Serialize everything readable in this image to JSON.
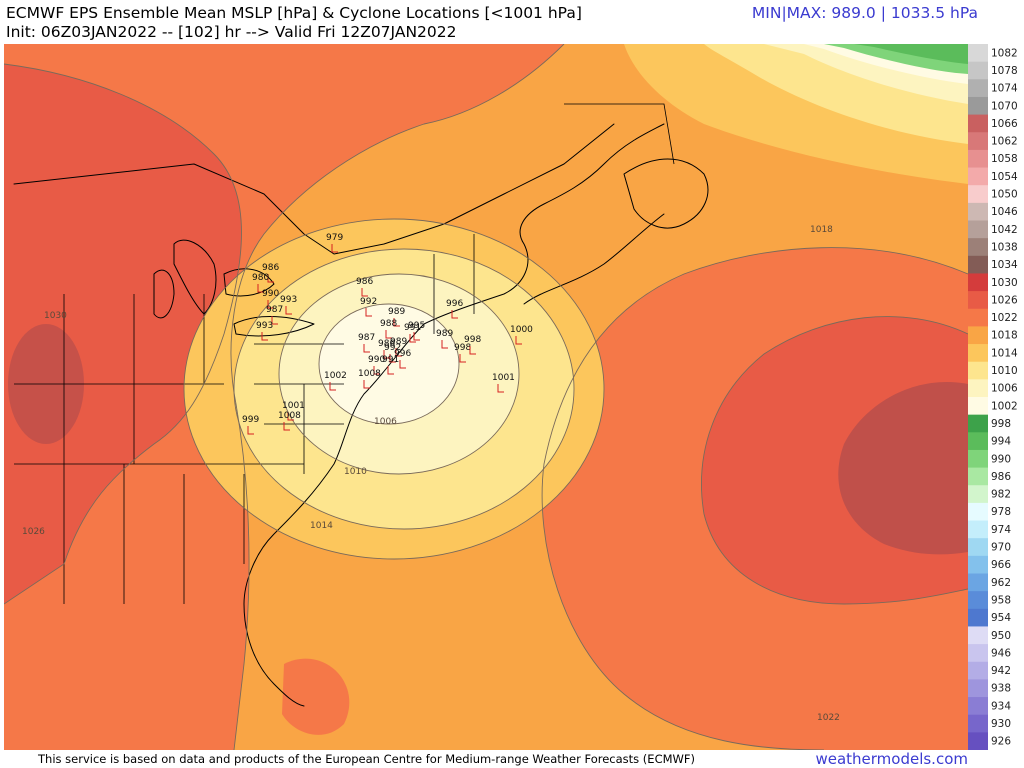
{
  "header": {
    "title": "ECMWF EPS Ensemble Mean MSLP [hPa] & Cyclone Locations [<1001 hPa]",
    "init_line": "Init: 06Z03JAN2022 -- [102] hr --> Valid Fri 12Z07JAN2022",
    "minmax": "MIN|MAX: 989.0 | 1033.5 hPa"
  },
  "footer": {
    "attribution": "This service is based on data and products of the European Centre for Medium-range Weather Forecasts (ECMWF)",
    "site": "weathermodels.com"
  },
  "colorbar": {
    "labels": [
      "1082",
      "1078",
      "1074",
      "1070",
      "1066",
      "1062",
      "1058",
      "1054",
      "1050",
      "1046",
      "1042",
      "1038",
      "1034",
      "1030",
      "1026",
      "1022",
      "1018",
      "1014",
      "1010",
      "1006",
      "1002",
      "998",
      "994",
      "990",
      "986",
      "982",
      "978",
      "974",
      "970",
      "966",
      "962",
      "958",
      "954",
      "950",
      "946",
      "942",
      "938",
      "934",
      "930",
      "926"
    ],
    "colors": [
      "#d8d8d8",
      "#c6c6c6",
      "#b0b0b0",
      "#9a9a9a",
      "#c96060",
      "#d87878",
      "#e79090",
      "#f3aaaa",
      "#f8cccc",
      "#cdb8b3",
      "#b5a09a",
      "#9c8078",
      "#835c56",
      "#d43c3c",
      "#e85b46",
      "#f57848",
      "#f9a545",
      "#fcc65c",
      "#fde58e",
      "#fdf4c0",
      "#fffbe4",
      "#3da24a",
      "#5bbc5b",
      "#7fd47a",
      "#a9e8a2",
      "#d2f5cc",
      "#e6fbff",
      "#c4eefb",
      "#9fd8f2",
      "#83c1ec",
      "#6ba5e3",
      "#5a8cd9",
      "#4e78cf",
      "#dedcf5",
      "#c9c5ee",
      "#b3ade6",
      "#9e95dd",
      "#8a7dd4",
      "#7766cb",
      "#6650c0"
    ]
  },
  "map": {
    "isobars": [
      {
        "label": "1006",
        "color": "#fffbe4"
      },
      {
        "label": "1010",
        "color": "#fdf4c0"
      },
      {
        "label": "1014",
        "color": "#fde58e"
      },
      {
        "label": "1018",
        "color": "#fcc65c"
      },
      {
        "label": "1022",
        "color": "#f9a545"
      },
      {
        "label": "1026",
        "color": "#f57848"
      },
      {
        "label": "1030",
        "color": "#e85b46"
      }
    ],
    "cyclones": [
      "979",
      "986",
      "980",
      "990",
      "993",
      "987",
      "993",
      "986",
      "992",
      "989",
      "996",
      "988",
      "989",
      "991",
      "995",
      "987",
      "986",
      "990",
      "998",
      "992",
      "989",
      "998",
      "1000",
      "996",
      "991",
      "1001",
      "1002",
      "1008",
      "999",
      "1001",
      "1008"
    ]
  }
}
